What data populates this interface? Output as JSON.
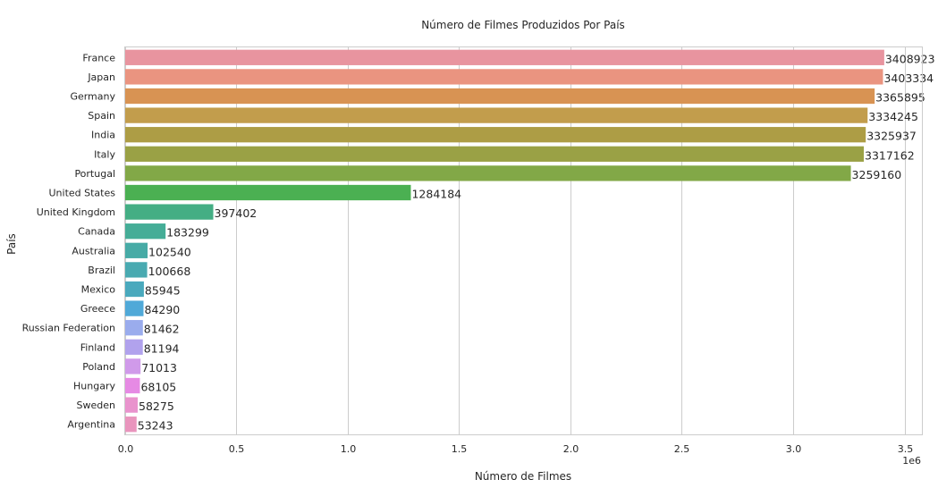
{
  "chart_data": {
    "type": "bar",
    "orientation": "horizontal",
    "title": "Número de Filmes Produzidos Por País",
    "xlabel": "Número de Filmes",
    "ylabel": "País",
    "x_offset_label": "1e6",
    "xlim": [
      0,
      3580000
    ],
    "xticks": [
      {
        "value": 0,
        "label": "0.0"
      },
      {
        "value": 500000,
        "label": "0.5"
      },
      {
        "value": 1000000,
        "label": "1.0"
      },
      {
        "value": 1500000,
        "label": "1.5"
      },
      {
        "value": 2000000,
        "label": "2.0"
      },
      {
        "value": 2500000,
        "label": "2.5"
      },
      {
        "value": 3000000,
        "label": "3.0"
      },
      {
        "value": 3500000,
        "label": "3.5"
      }
    ],
    "grid": true,
    "legend": "none",
    "categories": [
      "France",
      "Japan",
      "Germany",
      "Spain",
      "India",
      "Italy",
      "Portugal",
      "United States",
      "United Kingdom",
      "Canada",
      "Australia",
      "Brazil",
      "Mexico",
      "Greece",
      "Russian Federation",
      "Finland",
      "Poland",
      "Hungary",
      "Sweden",
      "Argentina"
    ],
    "values": [
      3408923,
      3403334,
      3365895,
      3334245,
      3325937,
      3317162,
      3259160,
      1284184,
      397402,
      183299,
      102540,
      100668,
      85945,
      84290,
      81462,
      81194,
      71013,
      68105,
      58275,
      53243
    ],
    "data_labels": [
      "3408923",
      "3403334",
      "3365895",
      "3334245",
      "3325937",
      "3317162",
      "3259160",
      "1284184",
      "397402",
      "183299",
      "102540",
      "100668",
      "85945",
      "84290",
      "81462",
      "81194",
      "71013",
      "68105",
      "58275",
      "53243"
    ],
    "colors": [
      "#e8949f",
      "#ea9480",
      "#d89353",
      "#c29d4c",
      "#ad9d45",
      "#9aa145",
      "#82a847",
      "#4bb052",
      "#44ae84",
      "#45ad97",
      "#47aba6",
      "#49aab1",
      "#4aa9bd",
      "#50a9d8",
      "#9aaced",
      "#b1a2ed",
      "#d09aea",
      "#e68ae4",
      "#e993cd",
      "#e995bd"
    ]
  }
}
